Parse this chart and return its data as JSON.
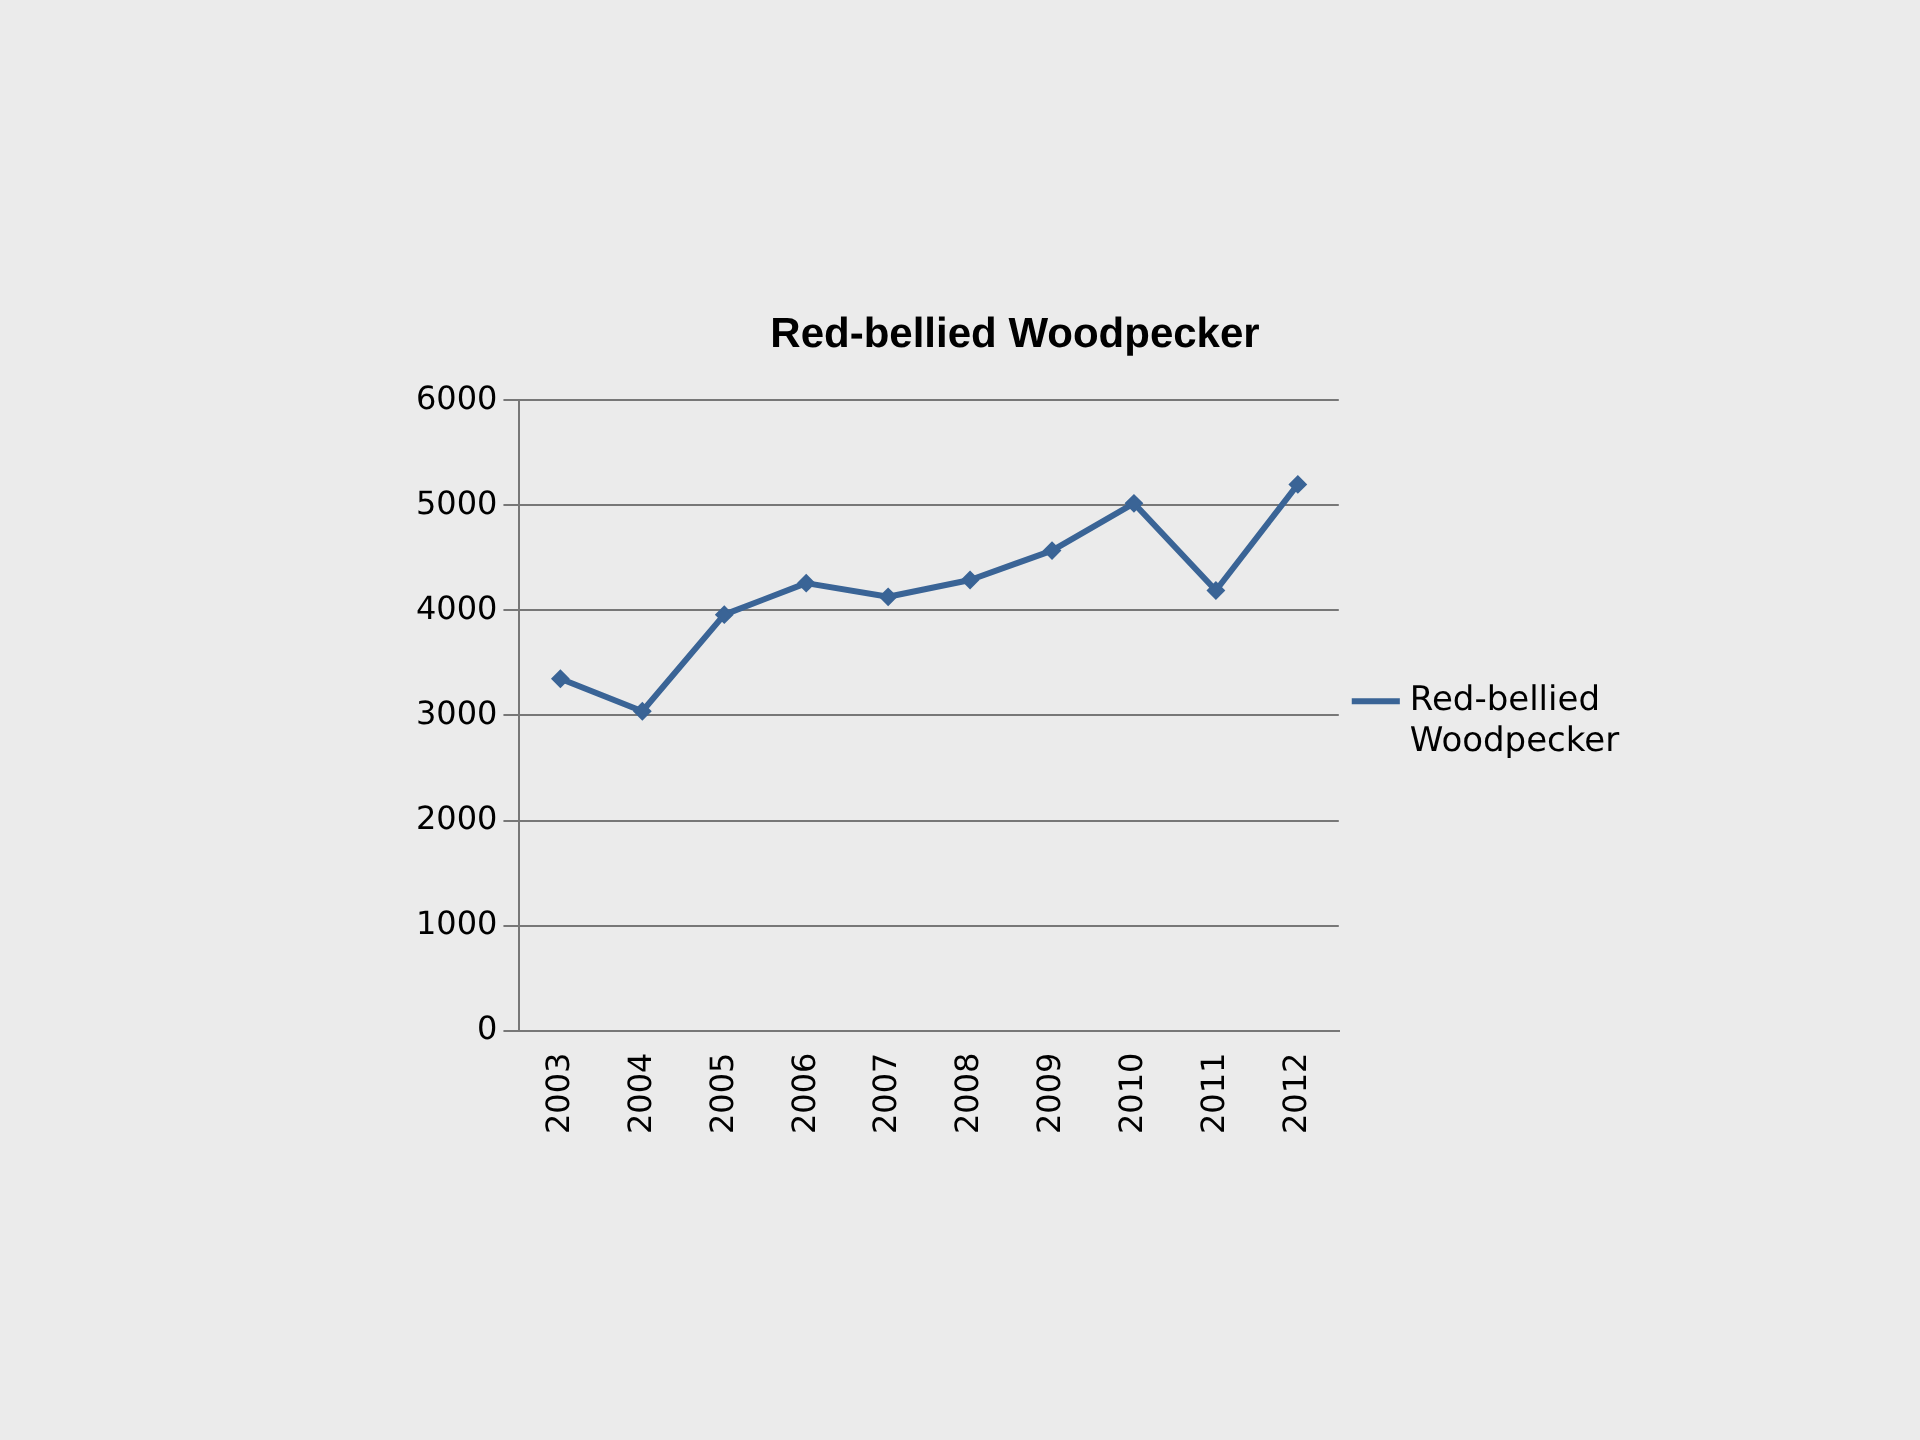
{
  "chart_data": {
    "type": "line",
    "title": "Red-bellied Woodpecker",
    "categories": [
      "2003",
      "2004",
      "2005",
      "2006",
      "2007",
      "2008",
      "2009",
      "2010",
      "2011",
      "2012"
    ],
    "series": [
      {
        "name": "Red-bellied Woodpecker",
        "color": "#3a6496",
        "values": [
          3350,
          3040,
          3960,
          4260,
          4130,
          4290,
          4570,
          5020,
          4190,
          5200
        ]
      }
    ],
    "ylim": [
      0,
      6000
    ],
    "yticks": [
      0,
      1000,
      2000,
      3000,
      4000,
      5000,
      6000
    ],
    "grid": "y",
    "legend": "right",
    "marker": "diamond",
    "line_style": "solid"
  }
}
